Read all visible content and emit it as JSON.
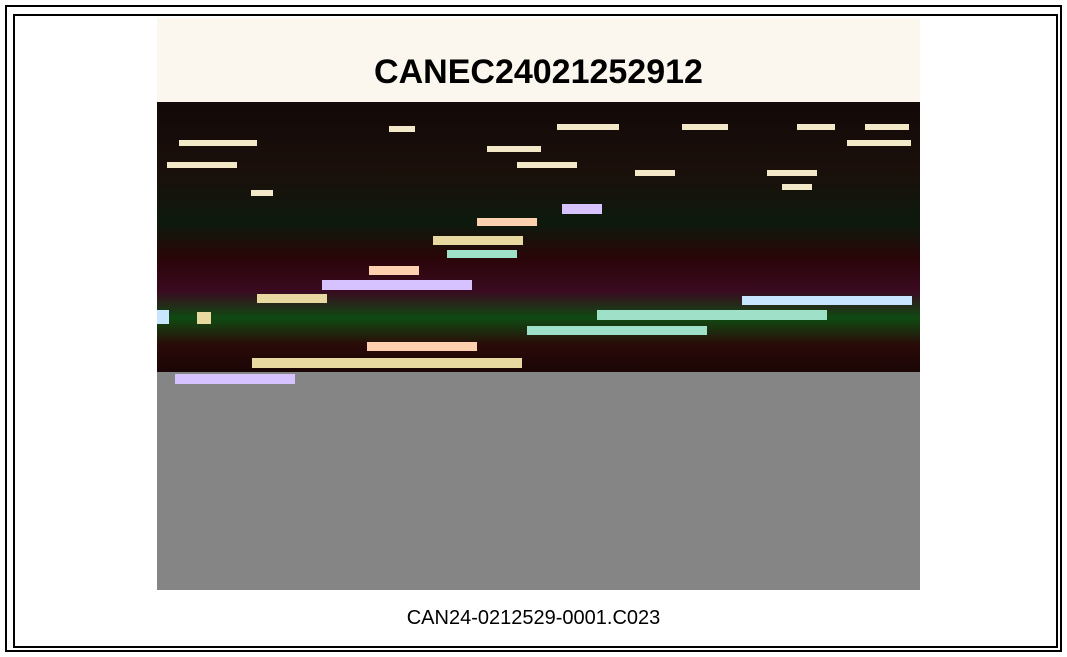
{
  "document": {
    "photo_label": "CANEC24021252912",
    "caption": "CAN24-0212529-0001.C023"
  }
}
